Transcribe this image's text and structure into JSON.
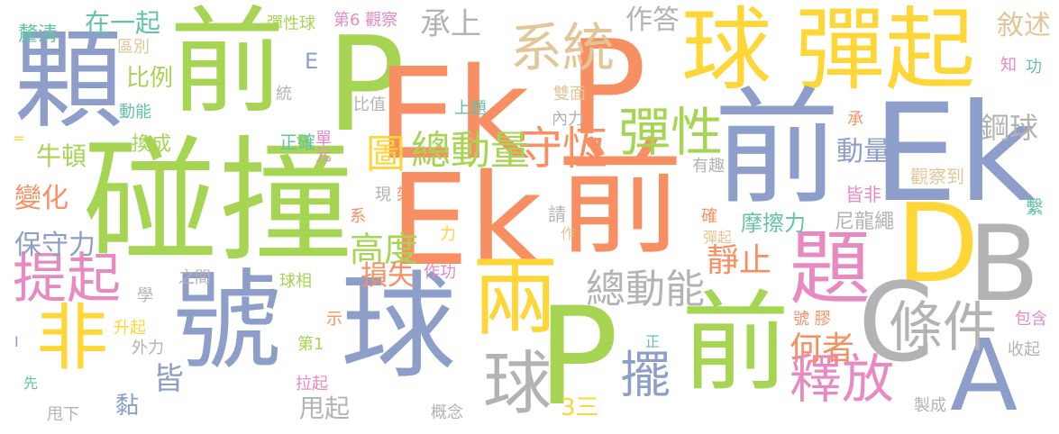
{
  "palette": {
    "blue": "#8c9ec9",
    "green": "#a6d554",
    "orange": "#f88f62",
    "yellow": "#fed637",
    "pink": "#e88ac2",
    "gray": "#b3b3b3",
    "tan": "#e3c697",
    "teal": "#64c2a5"
  },
  "words": [
    {
      "text": "碰撞",
      "color": "#a6d554"
    },
    {
      "text": "號",
      "color": "#8c9ec9"
    },
    {
      "text": "前",
      "color": "#a6d554"
    },
    {
      "text": "顆",
      "color": "#8c9ec9"
    },
    {
      "text": "P",
      "color": "#a6d554"
    },
    {
      "text": "Ek",
      "color": "#f88f62"
    },
    {
      "text": "P",
      "color": "#f88f62"
    },
    {
      "text": "球",
      "color": "#fed637"
    },
    {
      "text": "彈起",
      "color": "#fed637"
    },
    {
      "text": "前",
      "color": "#8c9ec9"
    },
    {
      "text": "Ek",
      "color": "#8c9ec9"
    },
    {
      "text": "Ek",
      "color": "#f88f62"
    },
    {
      "text": "前",
      "color": "#f88f62"
    },
    {
      "text": "球",
      "color": "#8c9ec9"
    },
    {
      "text": "兩",
      "color": "#fed637"
    },
    {
      "text": "P",
      "color": "#a6d554"
    },
    {
      "text": "前",
      "color": "#a6d554"
    },
    {
      "text": "D",
      "color": "#fed637"
    },
    {
      "text": "B",
      "color": "#b3b3b3"
    },
    {
      "text": "C",
      "color": "#b3b3b3"
    },
    {
      "text": "A",
      "color": "#8c9ec9"
    },
    {
      "text": "非",
      "color": "#fed637"
    },
    {
      "text": "提起",
      "color": "#e88ac2"
    },
    {
      "text": "題",
      "color": "#e88ac2"
    },
    {
      "text": "系統",
      "color": "#e3c697"
    },
    {
      "text": "彈性",
      "color": "#a6d554"
    },
    {
      "text": "守恆",
      "color": "#f88f62"
    },
    {
      "text": "總動量",
      "color": "#a6d554"
    },
    {
      "text": "圖",
      "color": "#fed637"
    },
    {
      "text": "球",
      "color": "#b3b3b3"
    },
    {
      "text": "擺",
      "color": "#8c9ec9"
    },
    {
      "text": "釋放",
      "color": "#e88ac2"
    },
    {
      "text": "條件",
      "color": "#b3b3b3"
    },
    {
      "text": "總動能",
      "color": "#b3b3b3"
    },
    {
      "text": "高度",
      "color": "#a6d554"
    },
    {
      "text": "靜止",
      "color": "#f88f62"
    },
    {
      "text": "何者",
      "color": "#f88f62"
    },
    {
      "text": "鋼球",
      "color": "#b3b3b3"
    },
    {
      "text": "動量",
      "color": "#8c9ec9"
    },
    {
      "text": "皆",
      "color": "#8c9ec9"
    },
    {
      "text": "承上",
      "color": "#b3b3b3"
    },
    {
      "text": "作答",
      "color": "#b3b3b3"
    },
    {
      "text": "敘述",
      "color": "#e3c697"
    },
    {
      "text": "在一起",
      "color": "#64c2a5"
    },
    {
      "text": "比例",
      "color": "#a6d554"
    },
    {
      "text": "牛頓",
      "color": "#a6d554"
    },
    {
      "text": "變化",
      "color": "#f88f62"
    },
    {
      "text": "保守力",
      "color": "#8c9ec9"
    },
    {
      "text": "損失",
      "color": "#f88f62"
    },
    {
      "text": "黏",
      "color": "#8c9ec9"
    },
    {
      "text": "3三",
      "color": "#fed637"
    },
    {
      "text": "甩起",
      "color": "#b3b3b3"
    },
    {
      "text": "摩擦力",
      "color": "#64c2a5"
    },
    {
      "text": "尼龍繩",
      "color": "#b3b3b3"
    },
    {
      "text": "觀察到",
      "color": "#e3c697"
    },
    {
      "text": "皆非",
      "color": "#e88ac2"
    },
    {
      "text": "有趣",
      "color": "#b3b3b3"
    },
    {
      "text": "釐清",
      "color": "#64c2a5"
    },
    {
      "text": "區別",
      "color": "#e3c697"
    },
    {
      "text": "彈性球",
      "color": "#a6d554"
    },
    {
      "text": "第6 觀察",
      "color": "#e88ac2"
    },
    {
      "text": "E",
      "color": "#8c9ec9"
    },
    {
      "text": "雙面",
      "color": "#e3c697"
    },
    {
      "text": "上題",
      "color": "#64c2a5"
    },
    {
      "text": "內力",
      "color": "#b3b3b3"
    },
    {
      "text": "比值",
      "color": "#b3b3b3"
    },
    {
      "text": "統",
      "color": "#b3b3b3"
    },
    {
      "text": "動能",
      "color": "#64c2a5"
    },
    {
      "text": "換成",
      "color": "#a6d554"
    },
    {
      "text": "正確",
      "color": "#64c2a5"
    },
    {
      "text": "單元",
      "color": "#e88ac2"
    },
    {
      "text": "架",
      "color": "#f88f62"
    },
    {
      "text": "現",
      "color": "#b3b3b3"
    },
    {
      "text": "請",
      "color": "#b3b3b3"
    },
    {
      "text": "系",
      "color": "#f88f62"
    },
    {
      "text": "力",
      "color": "#fed637"
    },
    {
      "text": "作",
      "color": "#e3c697"
    },
    {
      "text": "確",
      "color": "#f88f62"
    },
    {
      "text": "彈起",
      "color": "#e3c697"
    },
    {
      "text": "承",
      "color": "#f88f62"
    },
    {
      "text": "知",
      "color": "#e88ac2"
    },
    {
      "text": "功",
      "color": "#64c2a5"
    },
    {
      "text": "繫",
      "color": "#64c2a5"
    },
    {
      "text": "之間",
      "color": "#b3b3b3"
    },
    {
      "text": "球相",
      "color": "#a6d554"
    },
    {
      "text": "作功",
      "color": "#e88ac2"
    },
    {
      "text": "學",
      "color": "#b3b3b3"
    },
    {
      "text": "示",
      "color": "#f88f62"
    },
    {
      "text": "升起",
      "color": "#fed637"
    },
    {
      "text": "外力",
      "color": "#b3b3b3"
    },
    {
      "text": "第1",
      "color": "#a6d554"
    },
    {
      "text": "拉起",
      "color": "#e88ac2"
    },
    {
      "text": "號 膠",
      "color": "#f88f62"
    },
    {
      "text": "正",
      "color": "#64c2a5"
    },
    {
      "text": "包含",
      "color": "#e88ac2"
    },
    {
      "text": "收起",
      "color": "#b3b3b3"
    },
    {
      "text": "製成",
      "color": "#b3b3b3"
    },
    {
      "text": "概念",
      "color": "#b3b3b3"
    },
    {
      "text": "先",
      "color": "#64c2a5"
    },
    {
      "text": "甩下",
      "color": "#b3b3b3"
    },
    {
      "text": "I",
      "color": "#8c9ec9"
    },
    {
      "text": "=",
      "color": "#fed637"
    }
  ]
}
